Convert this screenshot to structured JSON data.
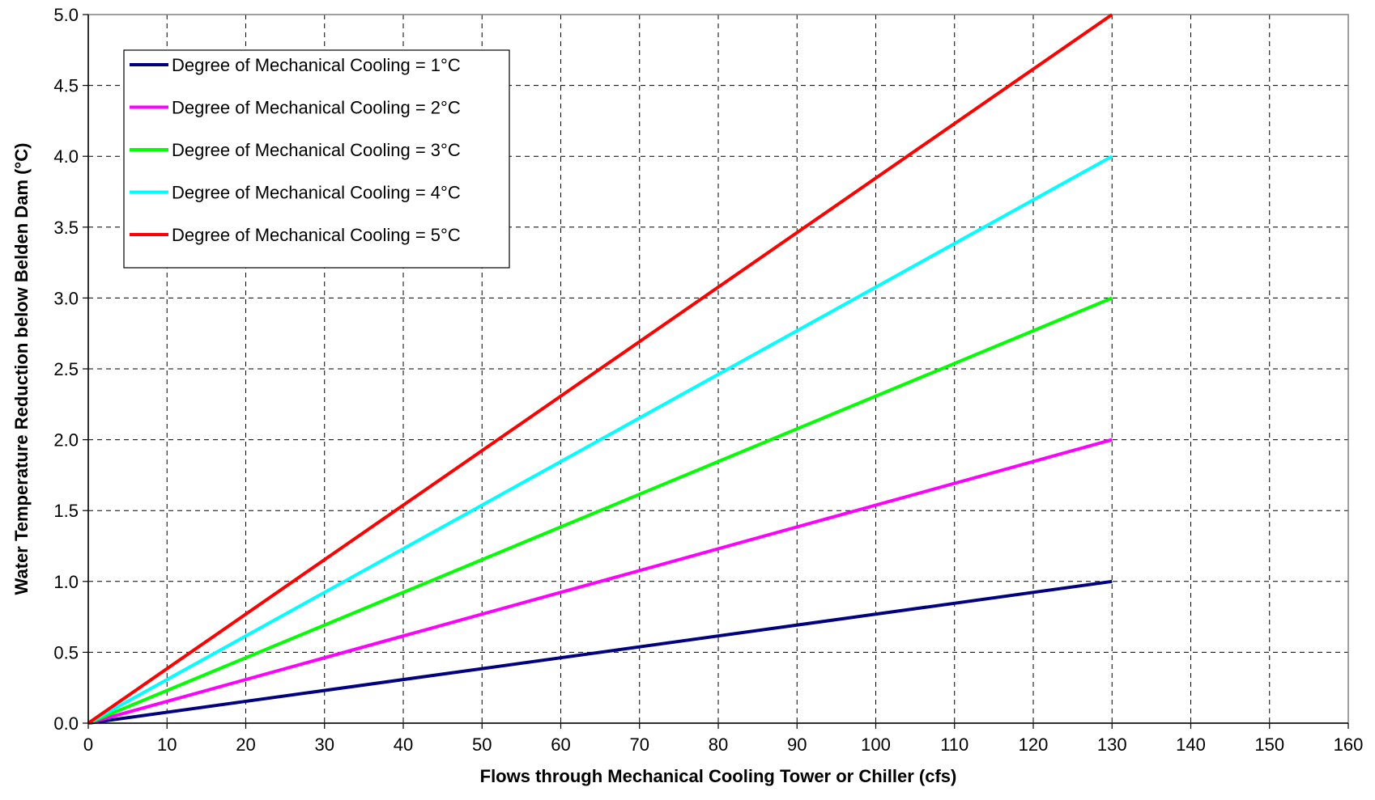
{
  "chart_data": {
    "type": "line",
    "title": "",
    "xlabel": "Flows through Mechanical Cooling Tower or Chiller (cfs)",
    "ylabel": "Water Temperature Reduction below Belden Dam (°C)",
    "xlim": [
      0,
      160
    ],
    "ylim": [
      0,
      5
    ],
    "xticks": [
      0,
      10,
      20,
      30,
      40,
      50,
      60,
      70,
      80,
      90,
      100,
      110,
      120,
      130,
      140,
      150,
      160
    ],
    "yticks": [
      "0.0",
      "0.5",
      "1.0",
      "1.5",
      "2.0",
      "2.5",
      "3.0",
      "3.5",
      "4.0",
      "4.5",
      "5.0"
    ],
    "grid": true,
    "legend_position": "top-left",
    "series": [
      {
        "name": "Degree of Mechanical Cooling = 1°C",
        "color": "#000080",
        "x": [
          0,
          130
        ],
        "y": [
          0,
          1
        ]
      },
      {
        "name": "Degree of Mechanical Cooling = 2°C",
        "color": "#ff00ff",
        "x": [
          0,
          130
        ],
        "y": [
          0,
          2
        ]
      },
      {
        "name": "Degree of Mechanical Cooling = 3°C",
        "color": "#00ff00",
        "x": [
          0,
          130
        ],
        "y": [
          0,
          3
        ]
      },
      {
        "name": "Degree of Mechanical Cooling = 4°C",
        "color": "#00ffff",
        "x": [
          0,
          130
        ],
        "y": [
          0,
          4
        ]
      },
      {
        "name": "Degree of Mechanical Cooling = 5°C",
        "color": "#ff0000",
        "x": [
          0,
          130
        ],
        "y": [
          0,
          5
        ]
      }
    ]
  }
}
